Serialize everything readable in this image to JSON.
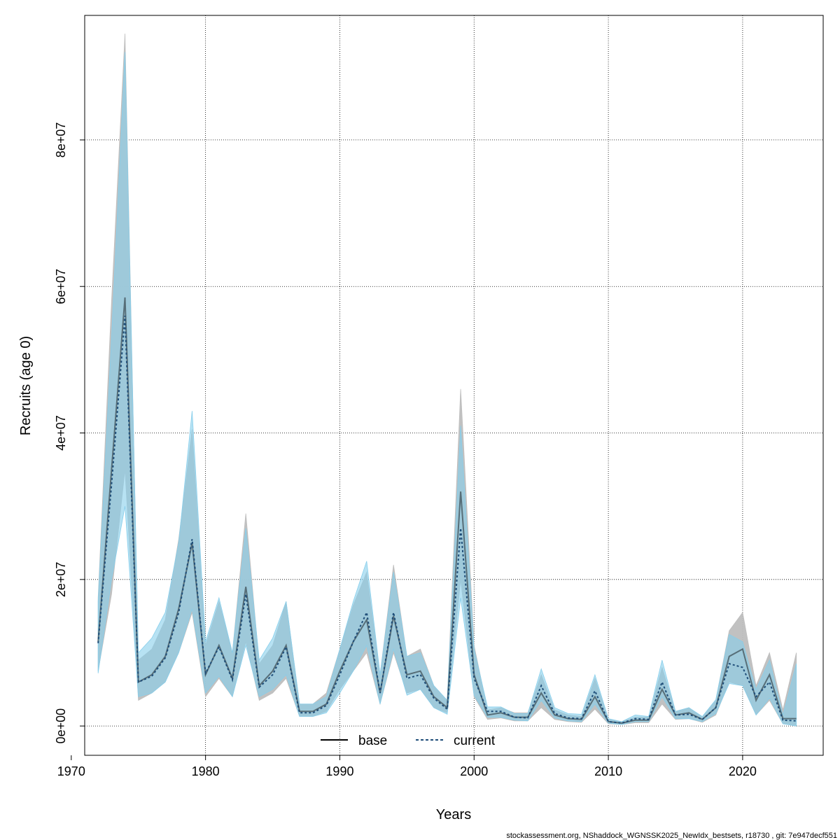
{
  "chart_data": {
    "type": "line",
    "xlabel": "Years",
    "ylabel": "Recruits (age 0)",
    "xlim": [
      1971,
      2026
    ],
    "ylim": [
      -4000000,
      97000000
    ],
    "x_ticks": [
      1970,
      1980,
      1990,
      2000,
      2010,
      2020
    ],
    "y_ticks": [
      0,
      20000000,
      40000000,
      60000000,
      80000000
    ],
    "y_tick_labels": [
      "0e+00",
      "2e+07",
      "4e+07",
      "6e+07",
      "8e+07"
    ],
    "grid": true,
    "legend_position": "bottom-center",
    "caption": "stockassessment.org, NShaddock_WGNSSK2025_NewIdx_bestsets, r18730 , git: 7e947decf551",
    "colors": {
      "base_band": "#bebebe",
      "current_band": "#87ceeb",
      "base_line": "#000000",
      "current_line": "#1f4e79"
    },
    "x": [
      1972,
      1973,
      1974,
      1975,
      1976,
      1977,
      1978,
      1979,
      1980,
      1981,
      1982,
      1983,
      1984,
      1985,
      1986,
      1987,
      1988,
      1989,
      1990,
      1991,
      1992,
      1993,
      1994,
      1995,
      1996,
      1997,
      1998,
      1999,
      2000,
      2001,
      2002,
      2003,
      2004,
      2005,
      2006,
      2007,
      2008,
      2009,
      2010,
      2011,
      2012,
      2013,
      2014,
      2015,
      2016,
      2017,
      2018,
      2019,
      2020,
      2021,
      2022,
      2023,
      2024
    ],
    "series": [
      {
        "name": "base",
        "style": "solid",
        "values": [
          11500000,
          35000000,
          58500000,
          6000000,
          7000000,
          9500000,
          16000000,
          25000000,
          7000000,
          11000000,
          6500000,
          19000000,
          5500000,
          7500000,
          11000000,
          2000000,
          2000000,
          3000000,
          7500000,
          11500000,
          14500000,
          4500000,
          15000000,
          7000000,
          7500000,
          4000000,
          2500000,
          32000000,
          7000000,
          1500000,
          1800000,
          1200000,
          1200000,
          4500000,
          1500000,
          1000000,
          900000,
          4000000,
          600000,
          400000,
          800000,
          800000,
          5000000,
          1500000,
          1800000,
          900000,
          2500000,
          9500000,
          10500000,
          3500000,
          7000000,
          1000000,
          1000000
        ],
        "lower": [
          7500000,
          18000000,
          35000000,
          3500000,
          4500000,
          6000000,
          10000000,
          15500000,
          4000000,
          6500000,
          4000000,
          11500000,
          3500000,
          4500000,
          6500000,
          1300000,
          1300000,
          2000000,
          5000000,
          7500000,
          10000000,
          3000000,
          10000000,
          4500000,
          5000000,
          2500000,
          1800000,
          20000000,
          4000000,
          900000,
          1100000,
          700000,
          700000,
          2500000,
          900000,
          600000,
          500000,
          2300000,
          300000,
          200000,
          450000,
          450000,
          3000000,
          900000,
          1000000,
          500000,
          1500000,
          6000000,
          5500000,
          1500000,
          3500000,
          300000,
          100000
        ],
        "upper": [
          17500000,
          58000000,
          94500000,
          9000000,
          10500000,
          14500000,
          25500000,
          40500000,
          11000000,
          17000000,
          10000000,
          29000000,
          8500000,
          11000000,
          17000000,
          3000000,
          3000000,
          4500000,
          10500000,
          16500000,
          21000000,
          7000000,
          22000000,
          9500000,
          10500000,
          5500000,
          3500000,
          46000000,
          11000000,
          2200000,
          2500000,
          1800000,
          1800000,
          7000000,
          2200000,
          1500000,
          1300000,
          6500000,
          900000,
          600000,
          1200000,
          1200000,
          8000000,
          2000000,
          2500000,
          1200000,
          3500000,
          13000000,
          15500000,
          5500000,
          10000000,
          2200000,
          10000000
        ]
      },
      {
        "name": "current",
        "style": "dashed",
        "values": [
          11300000,
          33000000,
          56000000,
          6000000,
          6800000,
          9300000,
          15500000,
          25500000,
          7200000,
          10800000,
          6300000,
          18000000,
          5300000,
          7000000,
          10800000,
          1800000,
          1800000,
          2800000,
          7000000,
          11500000,
          15500000,
          4500000,
          15500000,
          6500000,
          7000000,
          3800000,
          2300000,
          27000000,
          6500000,
          2000000,
          2000000,
          1200000,
          1100000,
          5500000,
          1700000,
          1100000,
          1000000,
          4800000,
          600000,
          400000,
          1000000,
          900000,
          6000000,
          1500000,
          1600000,
          900000,
          2500000,
          8500000,
          8000000,
          4000000,
          6000000,
          800000,
          700000
        ],
        "lower": [
          7200000,
          20000000,
          30000000,
          4000000,
          4500000,
          6000000,
          10000000,
          16000000,
          4500000,
          6800000,
          4000000,
          11000000,
          4000000,
          5000000,
          7000000,
          1300000,
          1300000,
          1800000,
          4500000,
          7500000,
          11000000,
          3000000,
          10500000,
          4200000,
          5000000,
          2500000,
          1600000,
          17500000,
          4200000,
          1200000,
          1200000,
          800000,
          700000,
          3500000,
          1100000,
          700000,
          600000,
          3000000,
          400000,
          200000,
          600000,
          600000,
          4000000,
          1000000,
          1000000,
          600000,
          1700000,
          5800000,
          5500000,
          1500000,
          3800000,
          300000,
          0
        ],
        "upper": [
          17000000,
          53000000,
          92000000,
          10000000,
          12000000,
          15500000,
          25000000,
          43000000,
          11500000,
          17500000,
          10000000,
          27000000,
          9000000,
          12000000,
          17000000,
          3000000,
          3000000,
          4000000,
          10500000,
          17000000,
          22500000,
          7000000,
          21000000,
          9500000,
          10000000,
          5500000,
          3500000,
          41000000,
          10500000,
          2600000,
          2600000,
          1700000,
          1700000,
          7800000,
          2500000,
          1700000,
          1600000,
          7000000,
          1000000,
          600000,
          1500000,
          1300000,
          9000000,
          2000000,
          2500000,
          1300000,
          3600000,
          12500000,
          11500000,
          5000000,
          9000000,
          1500000,
          8500000
        ]
      }
    ]
  }
}
